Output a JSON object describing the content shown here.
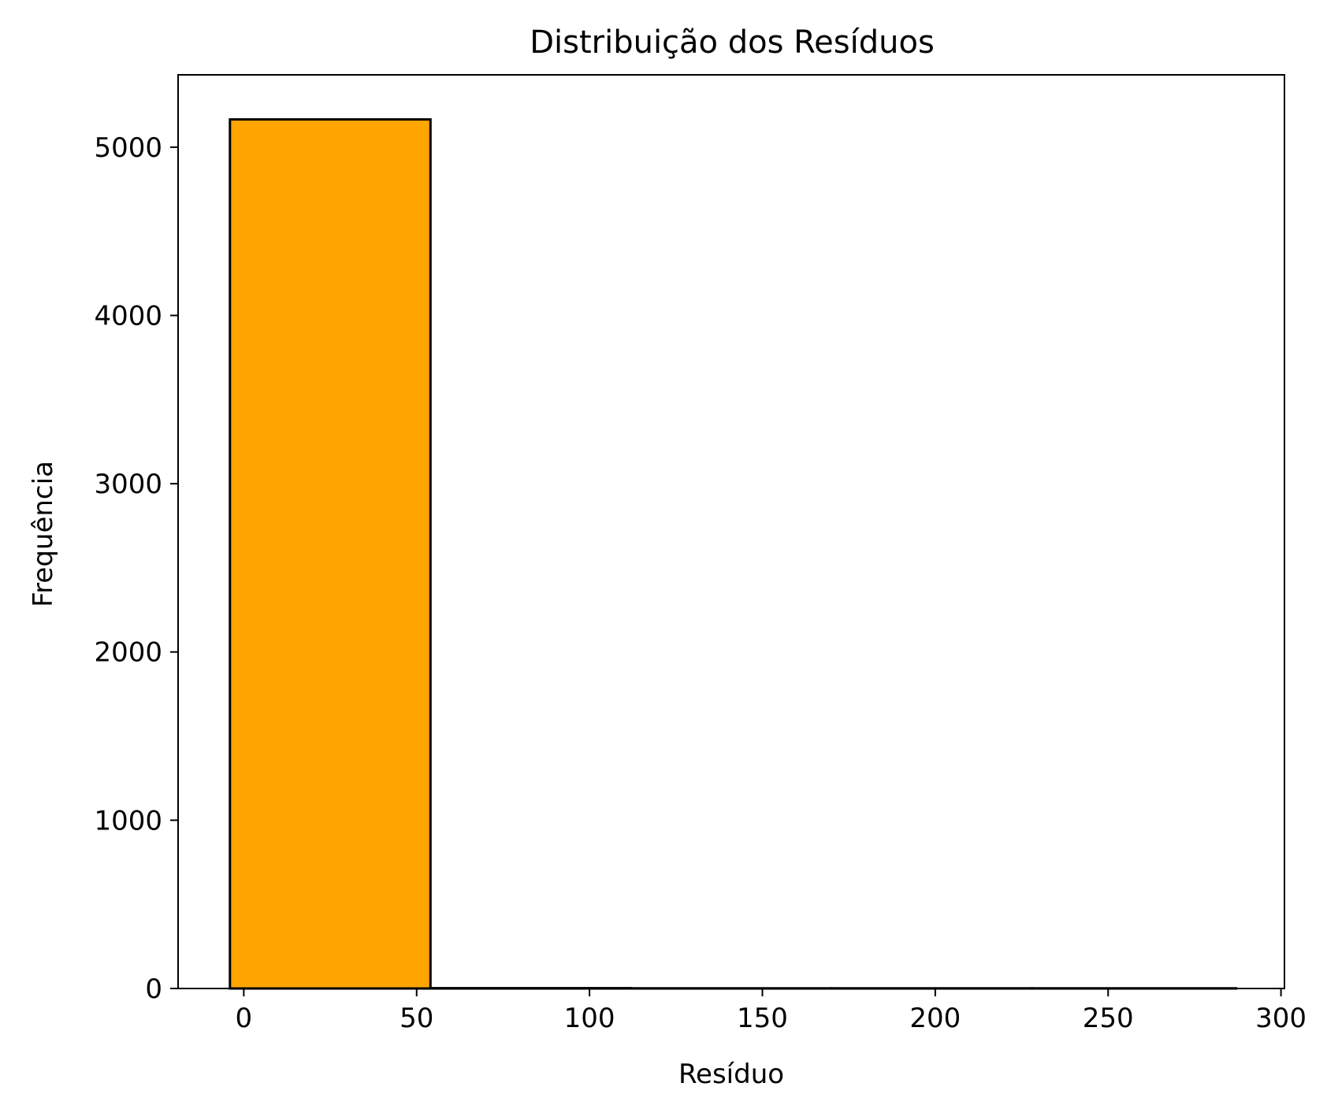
{
  "chart_data": {
    "type": "bar",
    "title": "Distribuição dos Resíduos",
    "xlabel": "Resíduo",
    "ylabel": "Frequência",
    "xlim": [
      -19,
      301
    ],
    "ylim": [
      0,
      5430
    ],
    "xticks": [
      0,
      50,
      100,
      150,
      200,
      250,
      300
    ],
    "yticks": [
      0,
      1000,
      2000,
      3000,
      4000,
      5000
    ],
    "bins": [
      {
        "x0": -4,
        "x1": 54,
        "count": 5165
      },
      {
        "x0": 54,
        "x1": 112,
        "count": 2
      },
      {
        "x0": 112,
        "x1": 170,
        "count": 1
      },
      {
        "x0": 170,
        "x1": 228,
        "count": 1
      },
      {
        "x0": 228,
        "x1": 287,
        "count": 1
      }
    ],
    "bar_color": "#FFA500",
    "edge_color": "#000000",
    "grid": false
  }
}
